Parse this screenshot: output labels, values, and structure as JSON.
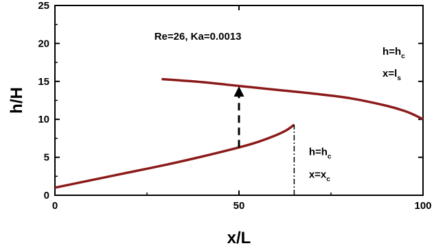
{
  "chart_data": {
    "type": "line",
    "title": "",
    "xlabel": "x/L",
    "ylabel": "h/H",
    "xlim": [
      0,
      100
    ],
    "ylim": [
      0,
      25
    ],
    "x_ticks": [
      0,
      50,
      100
    ],
    "x_minor_ticks": [
      25,
      75
    ],
    "y_ticks": [
      0,
      5,
      10,
      15,
      20,
      25
    ],
    "grid": false,
    "series": [
      {
        "color": "#8b1a1a",
        "x": [
          0,
          10,
          20,
          30,
          40,
          50,
          55,
          60,
          63,
          65
        ],
        "y": [
          1.0,
          2.0,
          3.0,
          4.0,
          5.1,
          6.3,
          7.0,
          7.9,
          8.6,
          9.3
        ]
      },
      {
        "color": "#8b1a1a",
        "x": [
          29,
          40,
          50,
          60,
          70,
          80,
          90,
          95,
          98,
          100
        ],
        "y": [
          15.3,
          14.9,
          14.4,
          13.9,
          13.4,
          12.8,
          11.8,
          11.1,
          10.5,
          10.0
        ]
      }
    ],
    "jump_arrow": {
      "x": 50,
      "y_from": 6.3,
      "y_to": 14.4
    },
    "critical_line": {
      "x": 65,
      "y_from": 0,
      "y_to": 9.3
    },
    "annotations": {
      "params": {
        "text": "Re=26, Ka=0.0013",
        "x": 27,
        "y": 20.5
      },
      "top_right": {
        "line1_main": "h=h",
        "line1_sub": "c",
        "line2_main": "x=l",
        "line2_sub": "s",
        "x": 89,
        "y": 18.5
      },
      "lower_mid": {
        "line1_main": "h=h",
        "line1_sub": "c",
        "line2_main": "x=x",
        "line2_sub": "c",
        "x": 69,
        "y": 5.3
      }
    }
  }
}
